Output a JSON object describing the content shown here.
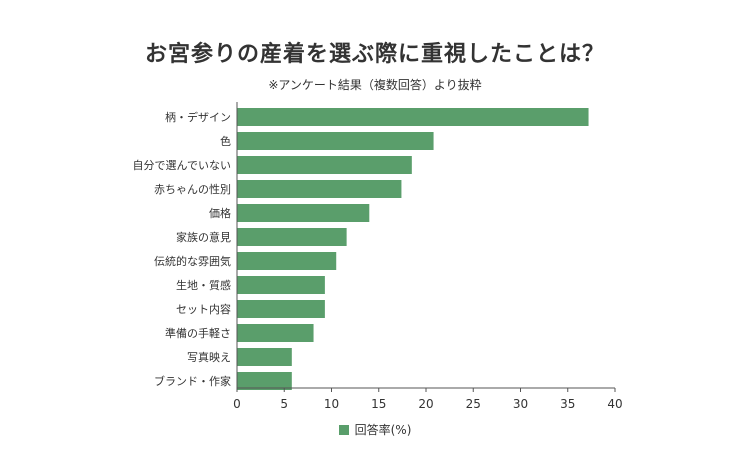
{
  "title": "お宮参りの産着を選ぶ際に重視したことは？",
  "subtitle": "※アンケート結果（複数回答）より抜粋",
  "colors": {
    "bar": "#5a9e6b",
    "axis": "#555555"
  },
  "chart_data": {
    "type": "bar",
    "orientation": "horizontal",
    "categories": [
      "柄・デザイン",
      "色",
      "自分で選んでいない",
      "赤ちゃんの性別",
      "価格",
      "家族の意見",
      "伝統的な雰囲気",
      "生地・質感",
      "セット内容",
      "準備の手軽さ",
      "写真映え",
      "ブランド・作家"
    ],
    "series": [
      {
        "name": "回答率(%)",
        "values": [
          37.2,
          20.8,
          18.5,
          17.4,
          14.0,
          11.6,
          10.5,
          9.3,
          9.3,
          8.1,
          5.8,
          5.8
        ]
      }
    ],
    "xlim": [
      0,
      40
    ],
    "xticks": [
      0,
      5,
      10,
      15,
      20,
      25,
      30,
      35,
      40
    ],
    "grid": false,
    "legend": "bottom-center"
  }
}
